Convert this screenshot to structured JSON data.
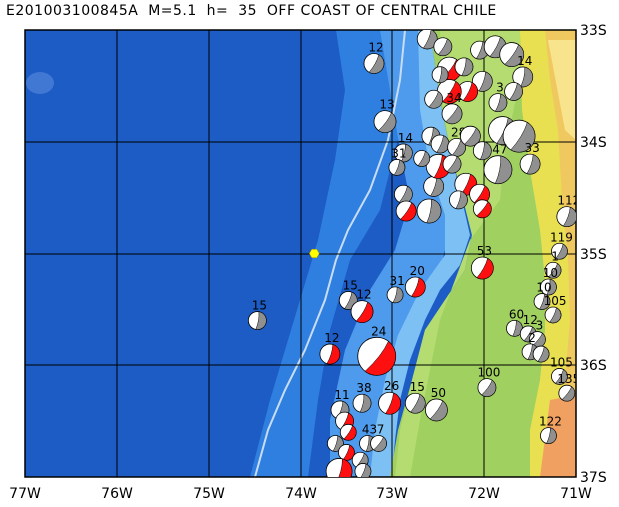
{
  "title": "E201003100845A  M=5.1  h=  35  OFF COAST OF CENTRAL CHILE",
  "lon_labels": [
    "77W",
    "76W",
    "75W",
    "74W",
    "73W",
    "72W",
    "71W"
  ],
  "lat_labels": [
    "33S",
    "34S",
    "35S",
    "36S",
    "37S"
  ],
  "extent": {
    "lon_min": -77,
    "lon_max": -71,
    "lat_min": -37,
    "lat_max": -33
  },
  "colors": {
    "ocean_deep": "#1c5cc4",
    "ocean_mid": "#2f7fe0",
    "ocean_shallow": "#7cc0f4",
    "land_low": "#a0d060",
    "land_mid": "#e8e050",
    "land_high": "#f0a060",
    "compression": "#ff1010",
    "comp_grey": "#909090",
    "epicenter": "#ffff00"
  },
  "epicenter": {
    "lon": -73.85,
    "lat": -35.0
  },
  "events": [
    {
      "lon": -74.47,
      "lat": -35.6,
      "mag": "15",
      "r": 9,
      "color": "grey"
    },
    {
      "lon": -73.68,
      "lat": -35.9,
      "mag": "12",
      "r": 10,
      "color": "red"
    },
    {
      "lon": -73.48,
      "lat": -35.42,
      "mag": "15",
      "r": 9,
      "color": "grey"
    },
    {
      "lon": -73.33,
      "lat": -35.52,
      "mag": "12",
      "r": 11,
      "color": "red"
    },
    {
      "lon": -73.17,
      "lat": -35.92,
      "mag": "24",
      "r": 19,
      "color": "red"
    },
    {
      "lon": -72.97,
      "lat": -35.37,
      "mag": "31",
      "r": 8,
      "color": "grey"
    },
    {
      "lon": -72.75,
      "lat": -35.3,
      "mag": "20",
      "r": 10,
      "color": "red"
    },
    {
      "lon": -72.02,
      "lat": -35.13,
      "mag": "53",
      "r": 11,
      "color": "red"
    },
    {
      "lon": -71.97,
      "lat": -36.2,
      "mag": "100",
      "r": 9,
      "color": "grey"
    },
    {
      "lon": -71.67,
      "lat": -35.67,
      "mag": "60",
      "r": 8,
      "color": "grey"
    },
    {
      "lon": -71.1,
      "lat": -34.67,
      "mag": "112",
      "r": 10,
      "color": "grey"
    },
    {
      "lon": -71.18,
      "lat": -34.98,
      "mag": "119",
      "r": 8,
      "color": "grey"
    },
    {
      "lon": -71.25,
      "lat": -35.15,
      "mag": "1",
      "r": 8,
      "color": "grey"
    },
    {
      "lon": -71.3,
      "lat": -35.3,
      "mag": "10",
      "r": 8,
      "color": "grey"
    },
    {
      "lon": -71.37,
      "lat": -35.43,
      "mag": "10",
      "r": 8,
      "color": "grey"
    },
    {
      "lon": -71.25,
      "lat": -35.55,
      "mag": "105",
      "r": 8,
      "color": "grey"
    },
    {
      "lon": -71.52,
      "lat": -35.72,
      "mag": "12",
      "r": 8,
      "color": "grey"
    },
    {
      "lon": -71.42,
      "lat": -35.77,
      "mag": "3",
      "r": 8,
      "color": "grey"
    },
    {
      "lon": -71.5,
      "lat": -35.88,
      "mag": "2",
      "r": 8,
      "color": "grey"
    },
    {
      "lon": -71.38,
      "lat": -35.9,
      "mag": "",
      "r": 8,
      "color": "grey"
    },
    {
      "lon": -71.18,
      "lat": -36.1,
      "mag": "105",
      "r": 8,
      "color": "grey"
    },
    {
      "lon": -71.1,
      "lat": -36.25,
      "mag": "135",
      "r": 8,
      "color": "grey"
    },
    {
      "lon": -71.3,
      "lat": -36.63,
      "mag": "122",
      "r": 8,
      "color": "grey"
    },
    {
      "lon": -73.03,
      "lat": -36.34,
      "mag": "26",
      "r": 11,
      "color": "red"
    },
    {
      "lon": -72.75,
      "lat": -36.34,
      "mag": "15",
      "r": 10,
      "color": "grey"
    },
    {
      "lon": -72.52,
      "lat": -36.4,
      "mag": "50",
      "r": 11,
      "color": "grey"
    },
    {
      "lon": -73.33,
      "lat": -36.34,
      "mag": "38",
      "r": 9,
      "color": "grey"
    },
    {
      "lon": -73.57,
      "lat": -36.4,
      "mag": "11",
      "r": 9,
      "color": "grey"
    },
    {
      "lon": -73.52,
      "lat": -36.5,
      "mag": "",
      "r": 9,
      "color": "red"
    },
    {
      "lon": -73.48,
      "lat": -36.6,
      "mag": "",
      "r": 8,
      "color": "red"
    },
    {
      "lon": -73.27,
      "lat": -36.7,
      "mag": "43",
      "r": 8,
      "color": "grey"
    },
    {
      "lon": -73.62,
      "lat": -36.7,
      "mag": "",
      "r": 8,
      "color": "grey"
    },
    {
      "lon": -73.5,
      "lat": -36.78,
      "mag": "",
      "r": 8,
      "color": "red"
    },
    {
      "lon": -73.35,
      "lat": -36.85,
      "mag": "",
      "r": 8,
      "color": "grey"
    },
    {
      "lon": -73.15,
      "lat": -36.7,
      "mag": "7",
      "r": 8,
      "color": "grey"
    },
    {
      "lon": -73.58,
      "lat": -36.95,
      "mag": "",
      "r": 13,
      "color": "red"
    },
    {
      "lon": -73.32,
      "lat": -36.95,
      "mag": "",
      "r": 8,
      "color": "grey"
    },
    {
      "lon": -73.2,
      "lat": -33.3,
      "mag": "12",
      "r": 10,
      "color": "grey"
    },
    {
      "lon": -73.08,
      "lat": -33.82,
      "mag": "13",
      "r": 11,
      "color": "grey"
    },
    {
      "lon": -72.88,
      "lat": -34.1,
      "mag": "14",
      "r": 9,
      "color": "grey"
    },
    {
      "lon": -72.95,
      "lat": -34.23,
      "mag": "31",
      "r": 8,
      "color": "grey"
    },
    {
      "lon": -72.88,
      "lat": -34.47,
      "mag": "",
      "r": 9,
      "color": "grey"
    },
    {
      "lon": -72.85,
      "lat": -34.62,
      "mag": "",
      "r": 10,
      "color": "red"
    },
    {
      "lon": -72.6,
      "lat": -34.62,
      "mag": "",
      "r": 12,
      "color": "grey"
    },
    {
      "lon": -72.55,
      "lat": -34.4,
      "mag": "",
      "r": 10,
      "color": "grey"
    },
    {
      "lon": -72.2,
      "lat": -34.38,
      "mag": "",
      "r": 11,
      "color": "red"
    },
    {
      "lon": -72.05,
      "lat": -34.47,
      "mag": "",
      "r": 10,
      "color": "red"
    },
    {
      "lon": -72.02,
      "lat": -34.6,
      "mag": "",
      "r": 9,
      "color": "red"
    },
    {
      "lon": -72.28,
      "lat": -34.52,
      "mag": "",
      "r": 9,
      "color": "grey"
    },
    {
      "lon": -72.62,
      "lat": -33.08,
      "mag": "0",
      "r": 10,
      "color": "grey"
    },
    {
      "lon": -72.45,
      "lat": -33.15,
      "mag": "",
      "r": 9,
      "color": "grey"
    },
    {
      "lon": -72.38,
      "lat": -33.35,
      "mag": "",
      "r": 12,
      "color": "red"
    },
    {
      "lon": -72.22,
      "lat": -33.33,
      "mag": "",
      "r": 9,
      "color": "grey"
    },
    {
      "lon": -72.05,
      "lat": -33.18,
      "mag": "",
      "r": 9,
      "color": "grey"
    },
    {
      "lon": -71.88,
      "lat": -33.15,
      "mag": "",
      "r": 11,
      "color": "grey"
    },
    {
      "lon": -71.7,
      "lat": -33.22,
      "mag": "",
      "r": 12,
      "color": "grey"
    },
    {
      "lon": -71.58,
      "lat": -33.42,
      "mag": "14",
      "r": 10,
      "color": "grey"
    },
    {
      "lon": -72.02,
      "lat": -33.46,
      "mag": "",
      "r": 10,
      "color": "grey"
    },
    {
      "lon": -72.18,
      "lat": -33.55,
      "mag": "",
      "r": 10,
      "color": "red"
    },
    {
      "lon": -72.38,
      "lat": -33.55,
      "mag": "",
      "r": 12,
      "color": "red"
    },
    {
      "lon": -72.48,
      "lat": -33.4,
      "mag": "",
      "r": 8,
      "color": "grey"
    },
    {
      "lon": -71.85,
      "lat": -33.65,
      "mag": "3",
      "r": 9,
      "color": "grey"
    },
    {
      "lon": -71.8,
      "lat": -33.9,
      "mag": "",
      "r": 14,
      "color": "grey"
    },
    {
      "lon": -71.62,
      "lat": -33.95,
      "mag": "",
      "r": 16,
      "color": "grey"
    },
    {
      "lon": -72.35,
      "lat": -33.75,
      "mag": "34",
      "r": 10,
      "color": "grey"
    },
    {
      "lon": -72.58,
      "lat": -33.95,
      "mag": "",
      "r": 9,
      "color": "grey"
    },
    {
      "lon": -72.48,
      "lat": -34.02,
      "mag": "",
      "r": 9,
      "color": "grey"
    },
    {
      "lon": -72.3,
      "lat": -34.05,
      "mag": "28",
      "r": 9,
      "color": "grey"
    },
    {
      "lon": -72.15,
      "lat": -33.95,
      "mag": "",
      "r": 10,
      "color": "grey"
    },
    {
      "lon": -72.02,
      "lat": -34.08,
      "mag": "",
      "r": 9,
      "color": "grey"
    },
    {
      "lon": -72.5,
      "lat": -34.22,
      "mag": "",
      "r": 12,
      "color": "red"
    },
    {
      "lon": -72.68,
      "lat": -34.15,
      "mag": "",
      "r": 8,
      "color": "grey"
    },
    {
      "lon": -72.35,
      "lat": -34.2,
      "mag": "",
      "r": 9,
      "color": "grey"
    },
    {
      "lon": -71.85,
      "lat": -34.25,
      "mag": "47",
      "r": 14,
      "color": "grey"
    },
    {
      "lon": -71.5,
      "lat": -34.2,
      "mag": "33",
      "r": 10,
      "color": "grey"
    },
    {
      "lon": -71.68,
      "lat": -33.55,
      "mag": "",
      "r": 9,
      "color": "grey"
    },
    {
      "lon": -72.55,
      "lat": -33.62,
      "mag": "",
      "r": 9,
      "color": "grey"
    }
  ]
}
